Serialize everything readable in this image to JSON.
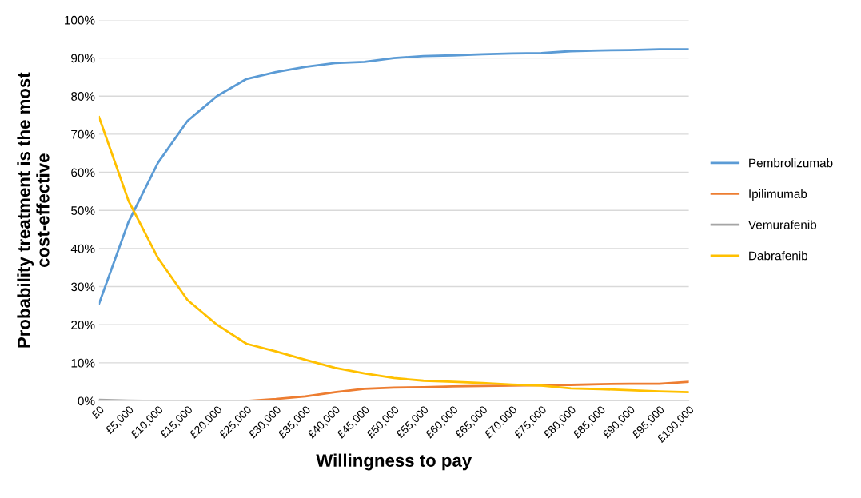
{
  "chart_data": {
    "type": "line",
    "xlabel": "Willingness to pay",
    "ylabel": "Probability treatment is the most\ncost-effective",
    "categories": [
      "£0",
      "£5,000",
      "£10,000",
      "£15,000",
      "£20,000",
      "£25,000",
      "£30,000",
      "£35,000",
      "£40,000",
      "£45,000",
      "£50,000",
      "£55,000",
      "£60,000",
      "£65,000",
      "£70,000",
      "£75,000",
      "£80,000",
      "£85,000",
      "£90,000",
      "£95,000",
      "£100,000"
    ],
    "series": [
      {
        "name": "Pembrolizumab",
        "color": "#5b9bd5",
        "values": [
          25.5,
          47,
          62.5,
          73.5,
          80,
          84.5,
          86.3,
          87.7,
          88.7,
          89,
          90,
          90.5,
          90.7,
          91,
          91.2,
          91.3,
          91.8,
          92,
          92.1,
          92.3,
          92.3
        ]
      },
      {
        "name": "Ipilimumab",
        "color": "#ed7d31",
        "values": [
          null,
          null,
          null,
          null,
          0,
          0,
          0.5,
          1.2,
          2.3,
          3.2,
          3.5,
          3.6,
          3.8,
          3.9,
          4,
          4.1,
          4.2,
          4.4,
          4.5,
          4.5,
          5
        ]
      },
      {
        "name": "Vemurafenib",
        "color": "#a5a5a5",
        "values": [
          0.3,
          0.1,
          0,
          0,
          0,
          0,
          0,
          0,
          0,
          0,
          0,
          0,
          0,
          0,
          0,
          0,
          0,
          0,
          0,
          0,
          0
        ]
      },
      {
        "name": "Dabrafenib",
        "color": "#ffc000",
        "values": [
          74.5,
          52.5,
          37.5,
          26.5,
          20,
          15,
          13,
          10.8,
          8.7,
          7.2,
          6,
          5.3,
          5,
          4.7,
          4.3,
          4,
          3.3,
          3.1,
          2.8,
          2.5,
          2.3
        ]
      }
    ],
    "ylim": [
      0,
      100
    ],
    "yticks": [
      {
        "value": 0,
        "label": "0%"
      },
      {
        "value": 10,
        "label": "10%"
      },
      {
        "value": 20,
        "label": "20%"
      },
      {
        "value": 30,
        "label": "30%"
      },
      {
        "value": 40,
        "label": "40%"
      },
      {
        "value": 50,
        "label": "50%"
      },
      {
        "value": 60,
        "label": "60%"
      },
      {
        "value": 70,
        "label": "70%"
      },
      {
        "value": 80,
        "label": "80%"
      },
      {
        "value": 90,
        "label": "90%"
      },
      {
        "value": 100,
        "label": "100%"
      }
    ],
    "grid": "y",
    "legend": "right",
    "marker": "none",
    "line_style": "solid"
  }
}
